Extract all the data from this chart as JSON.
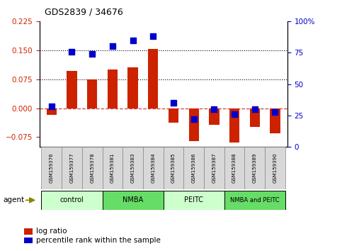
{
  "title": "GDS2839 / 34676",
  "samples": [
    "GSM159376",
    "GSM159377",
    "GSM159378",
    "GSM159381",
    "GSM159383",
    "GSM159384",
    "GSM159385",
    "GSM159386",
    "GSM159387",
    "GSM159388",
    "GSM159389",
    "GSM159390"
  ],
  "log_ratio": [
    -0.018,
    0.097,
    0.075,
    0.1,
    0.105,
    0.153,
    -0.038,
    -0.085,
    -0.042,
    -0.088,
    -0.048,
    -0.065
  ],
  "percentile_rank": [
    32,
    76,
    74,
    80,
    85,
    88,
    35,
    22,
    30,
    26,
    30,
    28
  ],
  "groups": [
    {
      "label": "control",
      "start": 0,
      "end": 3,
      "color": "#ccffcc"
    },
    {
      "label": "NMBA",
      "start": 3,
      "end": 6,
      "color": "#66dd66"
    },
    {
      "label": "PEITC",
      "start": 6,
      "end": 9,
      "color": "#ccffcc"
    },
    {
      "label": "NMBA and PEITC",
      "start": 9,
      "end": 12,
      "color": "#66dd66"
    }
  ],
  "ylim_left": [
    -0.1,
    0.225
  ],
  "ylim_right": [
    0,
    100
  ],
  "yticks_left": [
    -0.075,
    0,
    0.075,
    0.15,
    0.225
  ],
  "yticks_right": [
    0,
    25,
    50,
    75,
    100
  ],
  "hlines": [
    0.075,
    0.15
  ],
  "bar_color": "#cc2200",
  "dot_color": "#0000cc",
  "bar_width": 0.5,
  "dot_size": 40,
  "zero_line_color": "#cc4444",
  "grid_color": "black",
  "bg_color": "#ffffff"
}
